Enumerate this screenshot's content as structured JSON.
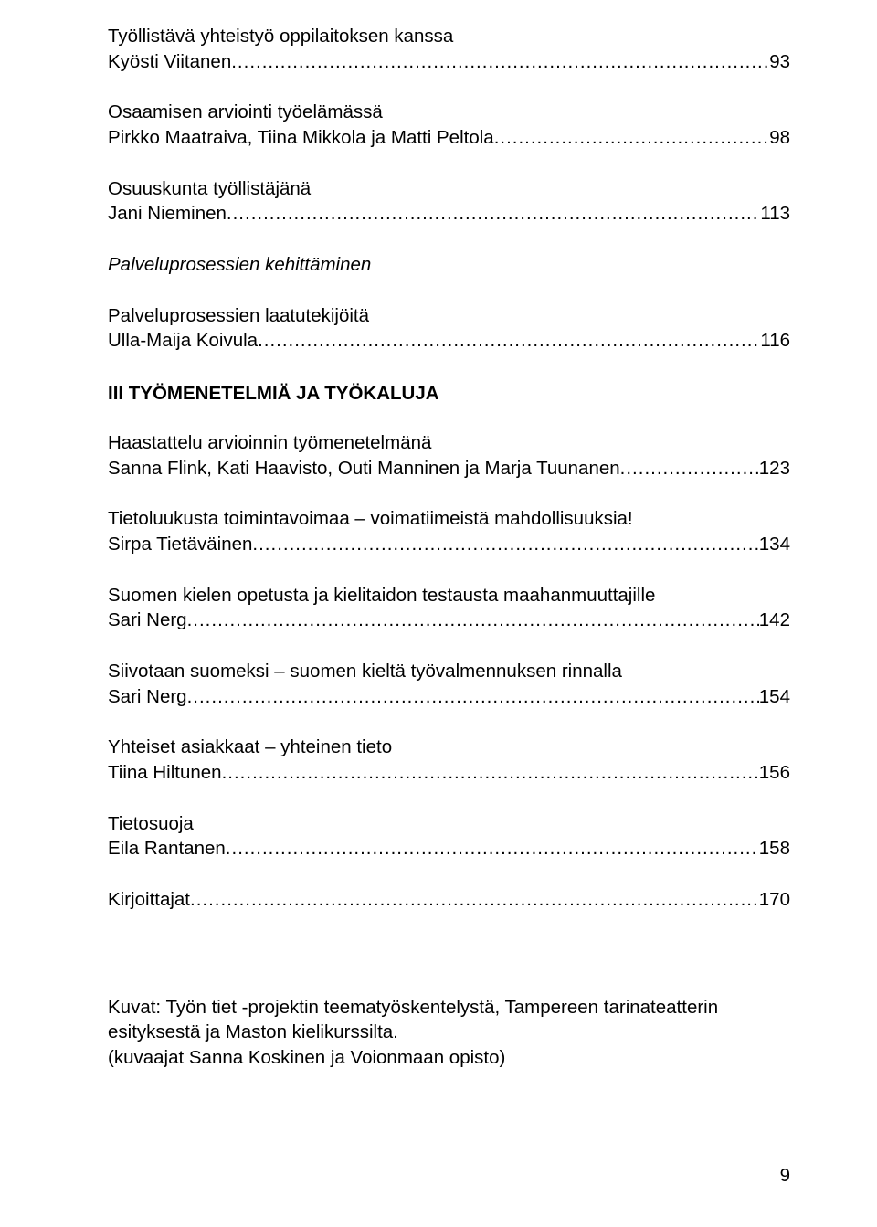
{
  "entries_top": [
    {
      "title": "Työllistävä yhteistyö oppilaitoksen kanssa",
      "author": "Kyösti Viitanen",
      "page": "93",
      "italic": false
    },
    {
      "title": "Osaamisen arviointi työelämässä",
      "author": "Pirkko Maatraiva, Tiina Mikkola ja Matti Peltola",
      "page": "98",
      "italic": false
    },
    {
      "title": "Osuuskunta työllistäjänä",
      "author": "Jani Nieminen",
      "page": "113",
      "italic": false
    },
    {
      "title": "Palveluprosessien kehittäminen",
      "author": "",
      "page": "",
      "italic": true
    },
    {
      "title": "Palveluprosessien laatutekijöitä",
      "author": "Ulla-Maija Koivula",
      "page": "116",
      "italic": false
    }
  ],
  "section3": "III TYÖMENETELMIÄ JA TYÖKALUJA",
  "entries_sec3": [
    {
      "title": "Haastattelu arvioinnin työmenetelmänä",
      "author": "Sanna Flink, Kati Haavisto, Outi Manninen ja Marja Tuunanen",
      "page": "123",
      "italic": false
    },
    {
      "title": "Tietoluukusta toimintavoimaa – voimatiimeistä mahdollisuuksia!",
      "author": "Sirpa Tietäväinen",
      "page": "134",
      "italic": false
    },
    {
      "title": "Suomen kielen opetusta ja kielitaidon testausta maahanmuuttajille",
      "author": "Sari Nerg",
      "page": "142",
      "italic": false
    },
    {
      "title": "Siivotaan suomeksi – suomen kieltä työvalmennuksen rinnalla",
      "author": "Sari Nerg",
      "page": "154",
      "italic": false
    },
    {
      "title": "Yhteiset asiakkaat – yhteinen tieto",
      "author": "Tiina Hiltunen",
      "page": "156",
      "italic": false
    },
    {
      "title": "Tietosuoja",
      "author": "Eila Rantanen",
      "page": "158",
      "italic": false
    },
    {
      "title": "Kirjoittajat",
      "author": "",
      "page": "170",
      "italic": false,
      "single": true
    }
  ],
  "credits": {
    "line1": "Kuvat: Työn tiet -projektin teematyöskentelystä, Tampereen tarinateatterin esityksestä ja Maston kielikurssilta.",
    "line2": "(kuvaajat Sanna Koskinen ja Voionmaan opisto)"
  },
  "footer_page": "9",
  "style": {
    "font_size_pt": 15,
    "text_color": "#000000",
    "background": "#ffffff"
  }
}
